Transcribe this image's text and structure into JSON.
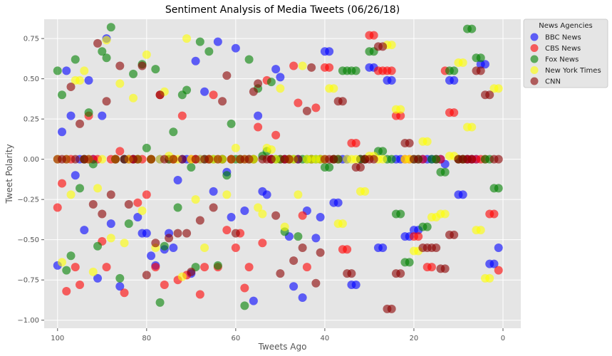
{
  "chart_data": {
    "type": "scatter",
    "title": "Sentiment Analysis of Media Tweets (06/26/18)",
    "xlabel": "Tweets Ago",
    "ylabel": "Tweet Polarity",
    "xlim": [
      103,
      -4
    ],
    "ylim": [
      -1.05,
      0.87
    ],
    "x_ticks": [
      100,
      80,
      60,
      40,
      20,
      0
    ],
    "y_ticks": [
      -1.0,
      -0.75,
      -0.5,
      -0.25,
      0.0,
      0.25,
      0.5,
      0.75
    ],
    "x_tick_labels": [
      "100",
      "80",
      "60",
      "40",
      "20",
      "0"
    ],
    "y_tick_labels": [
      "−1.00",
      "−0.75",
      "−0.50",
      "−0.25",
      "0.00",
      "0.25",
      "0.50",
      "0.75"
    ],
    "grid": true,
    "legend": {
      "title": "News Agencies",
      "placement": "outside-right-top"
    },
    "series": [
      {
        "name": "BBC News",
        "color": "#0000ff",
        "x": [
          100,
          99,
          98,
          97,
          96,
          95,
          94,
          93,
          92,
          91,
          90,
          89,
          88,
          87,
          86,
          85,
          84,
          83,
          82,
          81,
          80,
          79,
          78,
          77,
          76,
          75,
          74,
          73,
          72,
          71,
          70,
          69,
          68,
          67,
          66,
          65,
          64,
          63,
          62,
          61,
          60,
          59,
          58,
          57,
          56,
          55,
          54,
          53,
          52,
          51,
          50,
          49,
          48,
          47,
          46,
          45,
          44,
          43,
          42,
          41,
          40,
          39,
          38,
          37,
          36,
          35,
          34,
          33,
          32,
          31,
          30,
          29,
          28,
          27,
          26,
          25,
          24,
          23,
          22,
          21,
          20,
          19,
          18,
          17,
          16,
          15,
          14,
          13,
          12,
          11,
          10,
          9,
          8,
          7,
          6,
          5,
          4,
          3,
          2,
          1
        ],
        "y": [
          -0.66,
          0.17,
          0.55,
          0.27,
          -0.1,
          0,
          -0.44,
          0.49,
          0,
          -0.74,
          0.27,
          0.75,
          -0.4,
          0,
          -0.79,
          0,
          0,
          0,
          -0.36,
          -0.46,
          -0.46,
          -0.6,
          -0.66,
          0,
          -0.56,
          -0.46,
          -0.55,
          -0.13,
          0,
          0,
          -0.71,
          0.61,
          0,
          0.42,
          0,
          -0.2,
          0.73,
          0,
          -0.08,
          -0.36,
          0.69,
          0,
          -0.32,
          0,
          -0.88,
          0.27,
          -0.2,
          -0.22,
          0,
          0.56,
          0.51,
          0,
          -0.48,
          -0.79,
          0,
          -0.86,
          -0.32,
          0,
          -0.49,
          -0.36,
          0.67,
          0.67,
          -0.27,
          -0.27,
          0,
          0,
          -0.78,
          -0.78,
          0,
          0,
          0.57,
          0.57,
          -0.55,
          -0.55,
          0.49,
          0.49,
          0,
          0,
          -0.48,
          -0.48,
          -0.44,
          -0.44,
          0,
          0,
          0,
          0,
          0,
          -0.03,
          0.49,
          0.49,
          -0.22,
          -0.22,
          0,
          0,
          0,
          0.59,
          0.59,
          -0.65,
          -0.65,
          -0.55
        ]
      },
      {
        "name": "CBS News",
        "color": "#ff0000",
        "x": [
          100,
          99,
          98,
          97,
          96,
          95,
          94,
          93,
          92,
          91,
          90,
          89,
          88,
          87,
          86,
          85,
          84,
          83,
          82,
          81,
          80,
          79,
          78,
          77,
          76,
          75,
          74,
          73,
          72,
          71,
          70,
          69,
          68,
          67,
          66,
          65,
          64,
          63,
          62,
          61,
          60,
          59,
          58,
          57,
          56,
          55,
          54,
          53,
          52,
          51,
          50,
          49,
          48,
          47,
          46,
          45,
          44,
          43,
          42,
          41,
          40,
          39,
          38,
          37,
          36,
          35,
          34,
          33,
          32,
          31,
          30,
          29,
          28,
          27,
          26,
          25,
          24,
          23,
          22,
          21,
          20,
          19,
          18,
          17,
          16,
          15,
          14,
          13,
          12,
          11,
          10,
          9,
          8,
          7,
          6,
          5,
          4,
          3,
          2,
          1
        ],
        "y": [
          -0.3,
          -0.15,
          -0.82,
          0,
          -0.67,
          -0.78,
          0,
          0.27,
          0,
          0,
          -0.51,
          -0.67,
          0,
          0,
          0.05,
          -0.83,
          0,
          0,
          -0.27,
          0,
          -0.22,
          0,
          -0.67,
          0.4,
          -0.78,
          0,
          0,
          -0.75,
          0.27,
          -0.72,
          0,
          0,
          -0.84,
          -0.67,
          0,
          0.4,
          -0.67,
          0,
          -0.44,
          0,
          -0.55,
          -0.46,
          -0.8,
          -0.67,
          0,
          0.2,
          -0.52,
          0.49,
          0,
          0.15,
          0,
          0,
          0,
          0.58,
          0.35,
          -0.35,
          -0.67,
          0,
          0.32,
          0,
          0.57,
          0.57,
          0,
          0,
          -0.56,
          -0.56,
          0.1,
          0.1,
          0,
          0,
          0.77,
          0.77,
          0.55,
          0.55,
          0.55,
          0.55,
          0.27,
          0.27,
          0,
          0,
          -0.48,
          -0.48,
          0,
          -0.67,
          -0.67,
          0,
          0,
          0.55,
          0.29,
          0.29,
          0,
          0,
          0,
          0,
          0,
          0,
          0,
          -0.34,
          -0.34,
          -0.69
        ]
      },
      {
        "name": "Fox News",
        "color": "#008000",
        "x": [
          100,
          99,
          98,
          97,
          96,
          95,
          94,
          93,
          92,
          91,
          90,
          89,
          88,
          87,
          86,
          85,
          84,
          83,
          82,
          81,
          80,
          79,
          78,
          77,
          76,
          75,
          74,
          73,
          72,
          71,
          70,
          69,
          68,
          67,
          66,
          65,
          64,
          63,
          62,
          61,
          60,
          59,
          58,
          57,
          56,
          55,
          54,
          53,
          52,
          51,
          50,
          49,
          48,
          47,
          46,
          45,
          44,
          43,
          42,
          41,
          40,
          39,
          38,
          37,
          36,
          35,
          34,
          33,
          32,
          31,
          30,
          29,
          28,
          27,
          26,
          25,
          24,
          23,
          22,
          21,
          20,
          19,
          18,
          17,
          16,
          15,
          14,
          13,
          12,
          11,
          10,
          9,
          8,
          7,
          6,
          5,
          4,
          3,
          2,
          1
        ],
        "y": [
          0.55,
          0.4,
          -0.69,
          -0.6,
          0.62,
          -0.18,
          0,
          0.29,
          -0.03,
          -0.54,
          0.67,
          0.63,
          0.82,
          0,
          -0.74,
          0,
          -0.4,
          0.53,
          0,
          0.59,
          0.07,
          0,
          0.56,
          -0.89,
          -0.54,
          0,
          0.17,
          -0.3,
          0.4,
          0.43,
          -0.05,
          -0.67,
          0.73,
          0,
          0.67,
          0,
          -0.66,
          0,
          -0.1,
          0.22,
          0,
          0,
          -0.91,
          0.62,
          0,
          0.44,
          0.02,
          0.05,
          0.48,
          0,
          0,
          -0.45,
          0,
          0,
          -0.48,
          0,
          0,
          0,
          0,
          0,
          -0.05,
          -0.05,
          0,
          0,
          0.55,
          0.55,
          0.55,
          0.55,
          0,
          0,
          0.67,
          0.67,
          0.05,
          0.05,
          0,
          0,
          -0.34,
          -0.34,
          -0.64,
          -0.64,
          0,
          0,
          -0.42,
          -0.42,
          0,
          0,
          -0.08,
          -0.08,
          0.55,
          0.55,
          0,
          0,
          0.81,
          0.81,
          0.63,
          0.63,
          0,
          0,
          -0.18,
          -0.18
        ]
      },
      {
        "name": "New York Times",
        "color": "#ffff00",
        "x": [
          100,
          99,
          98,
          97,
          96,
          95,
          94,
          93,
          92,
          91,
          90,
          89,
          88,
          87,
          86,
          85,
          84,
          83,
          82,
          81,
          80,
          79,
          78,
          77,
          76,
          75,
          74,
          73,
          72,
          71,
          70,
          69,
          68,
          67,
          66,
          65,
          64,
          63,
          62,
          61,
          60,
          59,
          58,
          57,
          56,
          55,
          54,
          53,
          52,
          51,
          50,
          49,
          48,
          47,
          46,
          45,
          44,
          43,
          42,
          41,
          40,
          39,
          38,
          37,
          36,
          35,
          34,
          33,
          32,
          31,
          30,
          29,
          28,
          27,
          26,
          25,
          24,
          23,
          22,
          21,
          20,
          19,
          18,
          17,
          16,
          15,
          14,
          13,
          12,
          11,
          10,
          9,
          8,
          7,
          6,
          5,
          4,
          3,
          2,
          1
        ],
        "y": [
          0,
          -0.64,
          0,
          -0.22,
          0.49,
          0.49,
          0.55,
          0,
          -0.7,
          -0.18,
          0,
          0.74,
          -0.49,
          0,
          0.47,
          -0.52,
          0,
          0.38,
          0,
          -0.32,
          0.65,
          0,
          -0.55,
          0,
          0.42,
          0.02,
          0,
          0,
          -0.73,
          0.75,
          0,
          -0.25,
          0,
          -0.55,
          0,
          0,
          0,
          0,
          -0.22,
          0,
          0.07,
          0,
          0,
          0,
          0,
          -0.3,
          -0.34,
          0.07,
          0.06,
          0,
          0.44,
          -0.42,
          0,
          0,
          -0.22,
          0.58,
          0,
          0,
          0,
          0,
          0,
          0.44,
          0.44,
          -0.4,
          -0.4,
          0,
          0,
          0,
          -0.2,
          -0.2,
          0.02,
          0.02,
          0,
          0,
          0.71,
          0.71,
          0.31,
          0.31,
          0,
          0,
          -0.57,
          -0.57,
          0.11,
          0.11,
          -0.36,
          -0.36,
          -0.34,
          -0.34,
          0.02,
          0.02,
          0.6,
          0.6,
          0.2,
          0.2,
          -0.44,
          -0.44,
          -0.74,
          -0.74,
          0.44,
          0.44
        ]
      },
      {
        "name": "CNN",
        "color": "#8b0000",
        "x": [
          100,
          99,
          98,
          97,
          96,
          95,
          94,
          93,
          92,
          91,
          90,
          89,
          88,
          87,
          86,
          85,
          84,
          83,
          82,
          81,
          80,
          79,
          78,
          77,
          76,
          75,
          74,
          73,
          72,
          71,
          70,
          69,
          68,
          67,
          66,
          65,
          64,
          63,
          62,
          61,
          60,
          59,
          58,
          57,
          56,
          55,
          54,
          53,
          52,
          51,
          50,
          49,
          48,
          47,
          46,
          45,
          44,
          43,
          42,
          41,
          40,
          39,
          38,
          37,
          36,
          35,
          34,
          33,
          32,
          31,
          30,
          29,
          28,
          27,
          26,
          25,
          24,
          23,
          22,
          21,
          20,
          19,
          18,
          17,
          16,
          15,
          14,
          13,
          12,
          11,
          10,
          9,
          8,
          7,
          6,
          5,
          4,
          3,
          2,
          1
        ],
        "y": [
          0,
          0,
          0,
          0.45,
          0,
          0.22,
          0,
          0,
          -0.28,
          0.72,
          -0.34,
          0.36,
          -0.22,
          0,
          0.58,
          0,
          -0.28,
          0,
          0,
          0.58,
          -0.72,
          0,
          -0.52,
          0.4,
          0,
          -0.49,
          0,
          -0.46,
          0,
          -0.46,
          -0.7,
          0,
          -0.38,
          0,
          0,
          -0.3,
          0,
          0.36,
          0.52,
          0,
          -0.46,
          0,
          0,
          0,
          0.42,
          0.47,
          0,
          0,
          0,
          -0.35,
          -0.71,
          0,
          0,
          -0.63,
          0,
          -0.55,
          0.3,
          0.57,
          -0.77,
          -0.58,
          0,
          0,
          0,
          0.36,
          0.36,
          -0.71,
          -0.71,
          -0.05,
          -0.05,
          0,
          0,
          0,
          0.7,
          0.7,
          -0.93,
          -0.93,
          -0.71,
          -0.71,
          0.1,
          0.1,
          0,
          0,
          -0.55,
          -0.55,
          -0.55,
          -0.55,
          -0.68,
          -0.68,
          -0.47,
          -0.47,
          0,
          0,
          0,
          0,
          0.55,
          0.55,
          0.4,
          0.4,
          0,
          0
        ]
      }
    ]
  }
}
